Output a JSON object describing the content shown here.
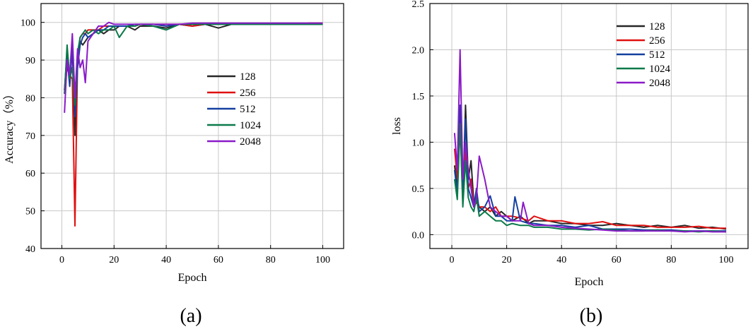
{
  "figure": {
    "panel_labels": [
      "(a)",
      "(b)"
    ]
  },
  "chart_data": [
    {
      "type": "line",
      "panel": "(a)",
      "title": "",
      "xlabel": "Epoch",
      "ylabel": "Accuracy（%）",
      "xlim": [
        -8,
        108
      ],
      "ylim": [
        40,
        105
      ],
      "xticks": [
        0,
        20,
        40,
        60,
        80,
        100
      ],
      "yticks": [
        40,
        50,
        60,
        70,
        80,
        90,
        100
      ],
      "grid": true,
      "legend": "center-right",
      "series": [
        {
          "name": "128",
          "color": "#262626",
          "x": [
            1,
            2,
            3,
            4,
            5,
            6,
            7,
            8,
            9,
            10,
            12,
            14,
            16,
            18,
            20,
            22,
            25,
            28,
            30,
            35,
            40,
            45,
            50,
            55,
            60,
            65,
            70,
            75,
            80,
            85,
            90,
            95,
            100
          ],
          "y": [
            82,
            92,
            84,
            94,
            70,
            92,
            95,
            94,
            95,
            96,
            97,
            98,
            97,
            98,
            98,
            99,
            99,
            98,
            99,
            99,
            98.5,
            99.5,
            99,
            99.5,
            98.5,
            99.5,
            99.5,
            99.5,
            99.5,
            99.5,
            99.5,
            99.5,
            99.5
          ]
        },
        {
          "name": "256",
          "color": "#e01010",
          "x": [
            1,
            2,
            3,
            4,
            5,
            6,
            7,
            8,
            9,
            10,
            12,
            14,
            16,
            18,
            20,
            22,
            25,
            28,
            30,
            35,
            40,
            45,
            50,
            55,
            60,
            65,
            70,
            75,
            80,
            85,
            90,
            95,
            100
          ],
          "y": [
            82,
            88,
            86,
            85,
            46,
            90,
            96,
            97,
            97,
            98,
            98,
            98,
            99,
            99,
            99,
            99,
            99,
            99,
            99.5,
            99.5,
            99.5,
            99.5,
            99,
            99.5,
            99.5,
            99.5,
            99.5,
            99.5,
            99.5,
            99.5,
            99.5,
            99.8,
            99.8
          ]
        },
        {
          "name": "512",
          "color": "#1340a0",
          "x": [
            1,
            2,
            3,
            4,
            5,
            6,
            7,
            8,
            9,
            10,
            12,
            14,
            16,
            18,
            20,
            22,
            25,
            28,
            30,
            35,
            40,
            45,
            50,
            55,
            60,
            65,
            70,
            75,
            80,
            85,
            90,
            95,
            100
          ],
          "y": [
            81,
            91,
            83,
            93,
            75,
            88,
            94,
            96,
            97,
            96,
            97,
            98,
            98,
            99,
            99,
            99,
            99,
            99.5,
            99.5,
            99.5,
            99,
            99.5,
            99.5,
            99.5,
            99.5,
            99.5,
            99.5,
            99.5,
            99.5,
            99.5,
            99.5,
            99.5,
            99.5
          ]
        },
        {
          "name": "1024",
          "color": "#0a7a4a",
          "x": [
            1,
            2,
            3,
            4,
            5,
            6,
            7,
            8,
            9,
            10,
            12,
            14,
            16,
            18,
            20,
            22,
            25,
            28,
            30,
            35,
            40,
            45,
            50,
            55,
            60,
            65,
            70,
            75,
            80,
            85,
            90,
            95,
            100
          ],
          "y": [
            81,
            94,
            85,
            88,
            78,
            92,
            96,
            97,
            98,
            97,
            98,
            97,
            98,
            98,
            99,
            96,
            99,
            99,
            99.5,
            99,
            98,
            99.5,
            99.5,
            99.5,
            99.5,
            99.5,
            99.5,
            99.5,
            99.5,
            99.5,
            99.5,
            99.5,
            99.5
          ]
        },
        {
          "name": "2048",
          "color": "#8a1ac8",
          "x": [
            1,
            2,
            3,
            4,
            5,
            6,
            7,
            8,
            9,
            10,
            12,
            14,
            16,
            18,
            20,
            22,
            25,
            28,
            30,
            35,
            40,
            45,
            50,
            55,
            60,
            65,
            70,
            75,
            80,
            85,
            90,
            95,
            100
          ],
          "y": [
            76,
            90,
            86,
            97,
            80,
            93,
            88,
            90,
            84,
            95,
            97,
            99,
            99,
            100,
            99.5,
            99.5,
            99.5,
            99.5,
            99.5,
            99.5,
            99.5,
            99.5,
            99.8,
            99.8,
            99.8,
            99.8,
            99.8,
            99.8,
            99.8,
            99.8,
            99.8,
            99.8,
            99.8
          ]
        }
      ]
    },
    {
      "type": "line",
      "panel": "(b)",
      "title": "",
      "xlabel": "Epoch",
      "ylabel": "loss",
      "xlim": [
        -8,
        108
      ],
      "ylim": [
        -0.15,
        2.5
      ],
      "xticks": [
        0,
        20,
        40,
        60,
        80,
        100
      ],
      "yticks": [
        0.0,
        0.5,
        1.0,
        1.5,
        2.0,
        2.5
      ],
      "grid": true,
      "legend": "top-right",
      "series": [
        {
          "name": "128",
          "color": "#262626",
          "x": [
            1,
            2,
            3,
            4,
            5,
            6,
            7,
            8,
            9,
            10,
            12,
            14,
            16,
            18,
            20,
            22,
            25,
            28,
            30,
            35,
            40,
            45,
            50,
            55,
            60,
            65,
            70,
            75,
            80,
            85,
            90,
            95,
            100
          ],
          "y": [
            0.75,
            0.5,
            1.3,
            0.35,
            1.4,
            0.6,
            0.8,
            0.35,
            0.4,
            0.3,
            0.25,
            0.3,
            0.2,
            0.25,
            0.2,
            0.15,
            0.2,
            0.12,
            0.15,
            0.15,
            0.12,
            0.12,
            0.1,
            0.1,
            0.12,
            0.1,
            0.08,
            0.1,
            0.08,
            0.1,
            0.07,
            0.08,
            0.06
          ]
        },
        {
          "name": "256",
          "color": "#e01010",
          "x": [
            1,
            2,
            3,
            4,
            5,
            6,
            7,
            8,
            9,
            10,
            12,
            14,
            16,
            18,
            20,
            22,
            25,
            28,
            30,
            35,
            40,
            45,
            50,
            55,
            60,
            65,
            70,
            75,
            80,
            85,
            90,
            95,
            100
          ],
          "y": [
            0.93,
            0.6,
            1.2,
            0.4,
            0.9,
            0.5,
            0.6,
            0.3,
            0.35,
            0.3,
            0.3,
            0.25,
            0.3,
            0.2,
            0.2,
            0.2,
            0.18,
            0.15,
            0.2,
            0.15,
            0.15,
            0.12,
            0.12,
            0.14,
            0.1,
            0.1,
            0.1,
            0.08,
            0.08,
            0.08,
            0.09,
            0.07,
            0.07
          ]
        },
        {
          "name": "512",
          "color": "#1340a0",
          "x": [
            1,
            2,
            3,
            4,
            5,
            6,
            7,
            8,
            9,
            10,
            12,
            14,
            16,
            18,
            20,
            22,
            23,
            25,
            28,
            30,
            35,
            40,
            45,
            50,
            55,
            60,
            65,
            70,
            75,
            80,
            85,
            90,
            95,
            100
          ],
          "y": [
            0.7,
            0.45,
            1.4,
            0.4,
            1.25,
            0.5,
            0.4,
            0.3,
            0.5,
            0.25,
            0.3,
            0.42,
            0.2,
            0.2,
            0.15,
            0.15,
            0.41,
            0.15,
            0.12,
            0.12,
            0.1,
            0.1,
            0.08,
            0.1,
            0.06,
            0.06,
            0.06,
            0.05,
            0.05,
            0.05,
            0.04,
            0.04,
            0.04,
            0.04
          ]
        },
        {
          "name": "1024",
          "color": "#0a7a4a",
          "x": [
            1,
            2,
            3,
            4,
            5,
            6,
            7,
            8,
            9,
            10,
            12,
            14,
            16,
            18,
            20,
            22,
            25,
            28,
            30,
            35,
            40,
            45,
            50,
            55,
            60,
            65,
            70,
            75,
            80,
            85,
            90,
            95,
            100
          ],
          "y": [
            0.6,
            0.38,
            1.2,
            0.3,
            0.8,
            0.4,
            0.3,
            0.25,
            0.4,
            0.2,
            0.25,
            0.2,
            0.15,
            0.15,
            0.1,
            0.12,
            0.1,
            0.1,
            0.08,
            0.08,
            0.06,
            0.06,
            0.05,
            0.06,
            0.05,
            0.04,
            0.04,
            0.05,
            0.04,
            0.04,
            0.03,
            0.04,
            0.03
          ]
        },
        {
          "name": "2048",
          "color": "#8a1ac8",
          "x": [
            1,
            2,
            3,
            4,
            5,
            6,
            7,
            8,
            9,
            10,
            12,
            14,
            16,
            18,
            20,
            22,
            25,
            26,
            28,
            30,
            35,
            40,
            45,
            50,
            55,
            60,
            65,
            70,
            75,
            80,
            85,
            90,
            95,
            100
          ],
          "y": [
            1.1,
            0.7,
            2.0,
            0.6,
            1.0,
            0.7,
            0.5,
            0.3,
            0.4,
            0.85,
            0.6,
            0.3,
            0.25,
            0.2,
            0.2,
            0.15,
            0.15,
            0.35,
            0.12,
            0.1,
            0.1,
            0.08,
            0.07,
            0.06,
            0.05,
            0.04,
            0.04,
            0.04,
            0.04,
            0.04,
            0.03,
            0.04,
            0.03,
            0.03
          ]
        }
      ]
    }
  ]
}
